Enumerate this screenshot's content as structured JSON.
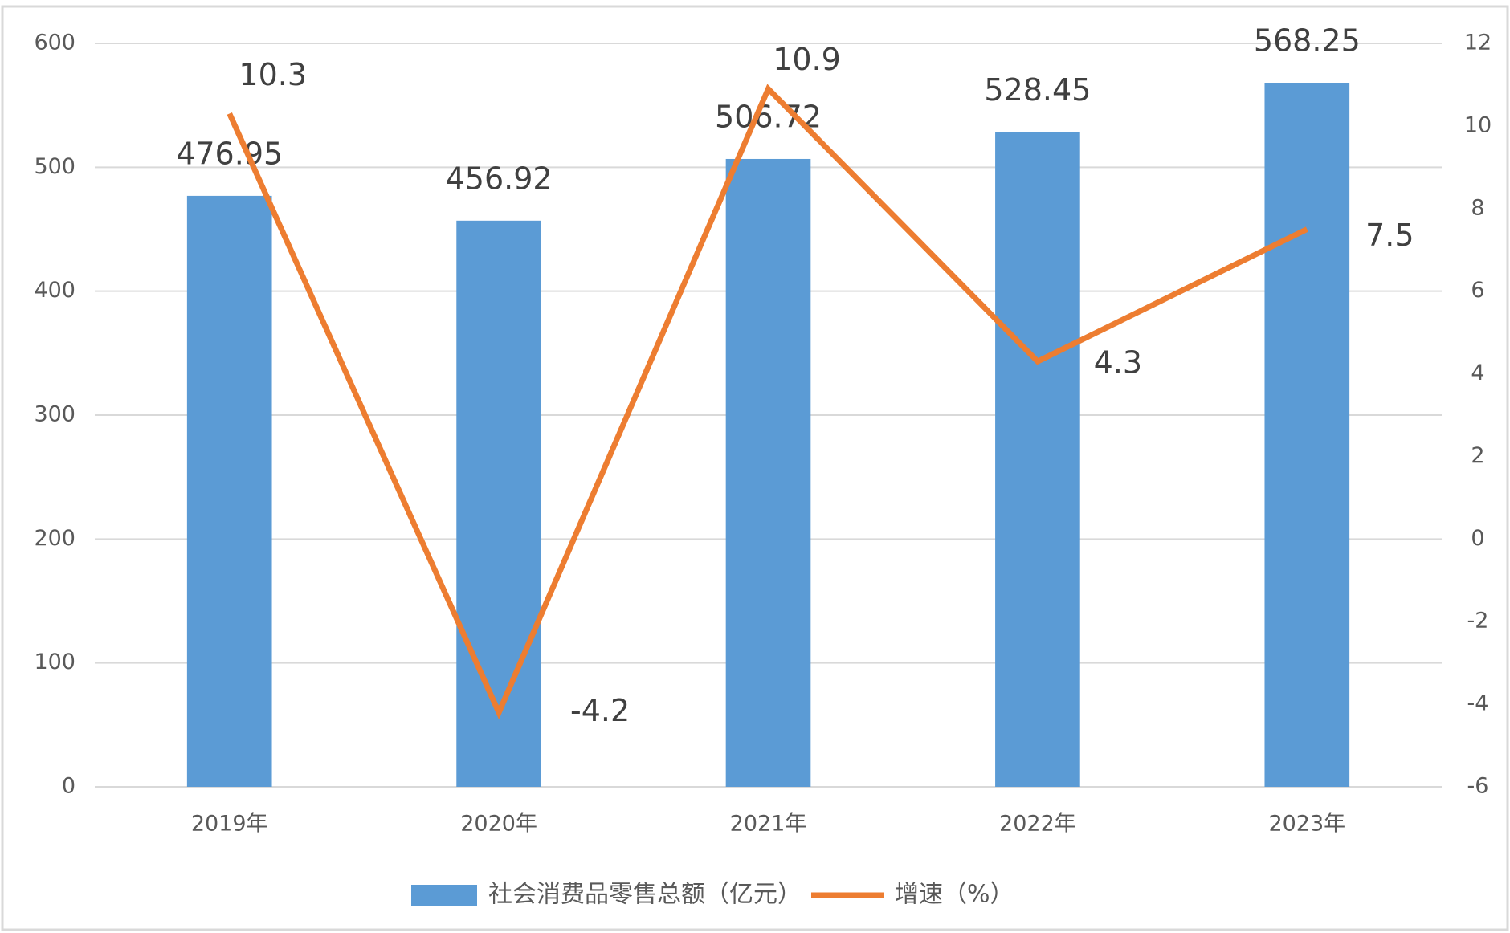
{
  "chart_data": {
    "type": "combo",
    "categories": [
      "2019年",
      "2020年",
      "2021年",
      "2022年",
      "2023年"
    ],
    "series": [
      {
        "name": "社会消费品零售总额（亿元）",
        "type": "bar",
        "color": "#5b9bd5",
        "values": [
          476.95,
          456.92,
          506.72,
          528.45,
          568.25
        ]
      },
      {
        "name": "增速（%）",
        "type": "line",
        "axis": "y2",
        "color": "#ed7d31",
        "values": [
          10.3,
          -4.2,
          10.9,
          4.3,
          7.5
        ]
      }
    ],
    "ylim": [
      0,
      600
    ],
    "yticks": [
      0,
      100,
      200,
      300,
      400,
      500,
      600
    ],
    "y2lim": [
      -6,
      12
    ],
    "y2ticks": [
      -6,
      -4,
      -2,
      0,
      2,
      4,
      6,
      8,
      10,
      12
    ],
    "grid": true,
    "legend": "bottom"
  }
}
